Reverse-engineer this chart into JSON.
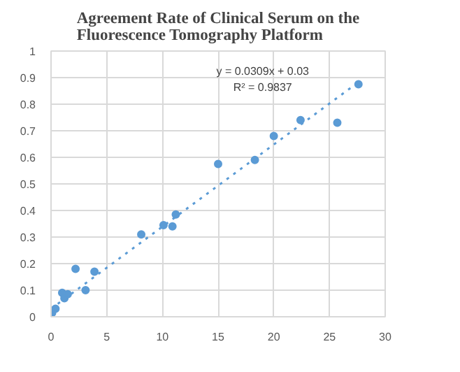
{
  "chart_data": {
    "type": "scatter",
    "title": "Agreement Rate of Clinical Serum on the Fluorescence Tomography Platform",
    "annotations": [
      "y = 0.0309x + 0.03",
      "R² = 0.9837"
    ],
    "xlim": [
      0,
      30
    ],
    "xticks": [
      0,
      5,
      10,
      15,
      20,
      25,
      30
    ],
    "ylim": [
      0,
      1
    ],
    "yticks": [
      0,
      0.1,
      0.2,
      0.3,
      0.4,
      0.5,
      0.6,
      0.7,
      0.8,
      0.9,
      1
    ],
    "grid": true,
    "marker": "circle",
    "series": [
      {
        "color": "#5b9bd5",
        "x": [
          0.1,
          0.4,
          1.0,
          1.2,
          1.5,
          2.2,
          3.1,
          3.9,
          8.1,
          10.1,
          10.9,
          11.2,
          15.0,
          18.3,
          20.0,
          22.4,
          25.7,
          27.6
        ],
        "values": [
          0.015,
          0.03,
          0.09,
          0.07,
          0.085,
          0.18,
          0.1,
          0.17,
          0.31,
          0.345,
          0.34,
          0.385,
          0.575,
          0.59,
          0.68,
          0.74,
          0.73,
          0.875
        ]
      },
      {
        "type": "line",
        "color": "#5b9bd5",
        "line_style": "dotted",
        "marker": "none",
        "x": [
          0,
          27.6
        ],
        "values": [
          0.03,
          0.883
        ]
      }
    ]
  }
}
